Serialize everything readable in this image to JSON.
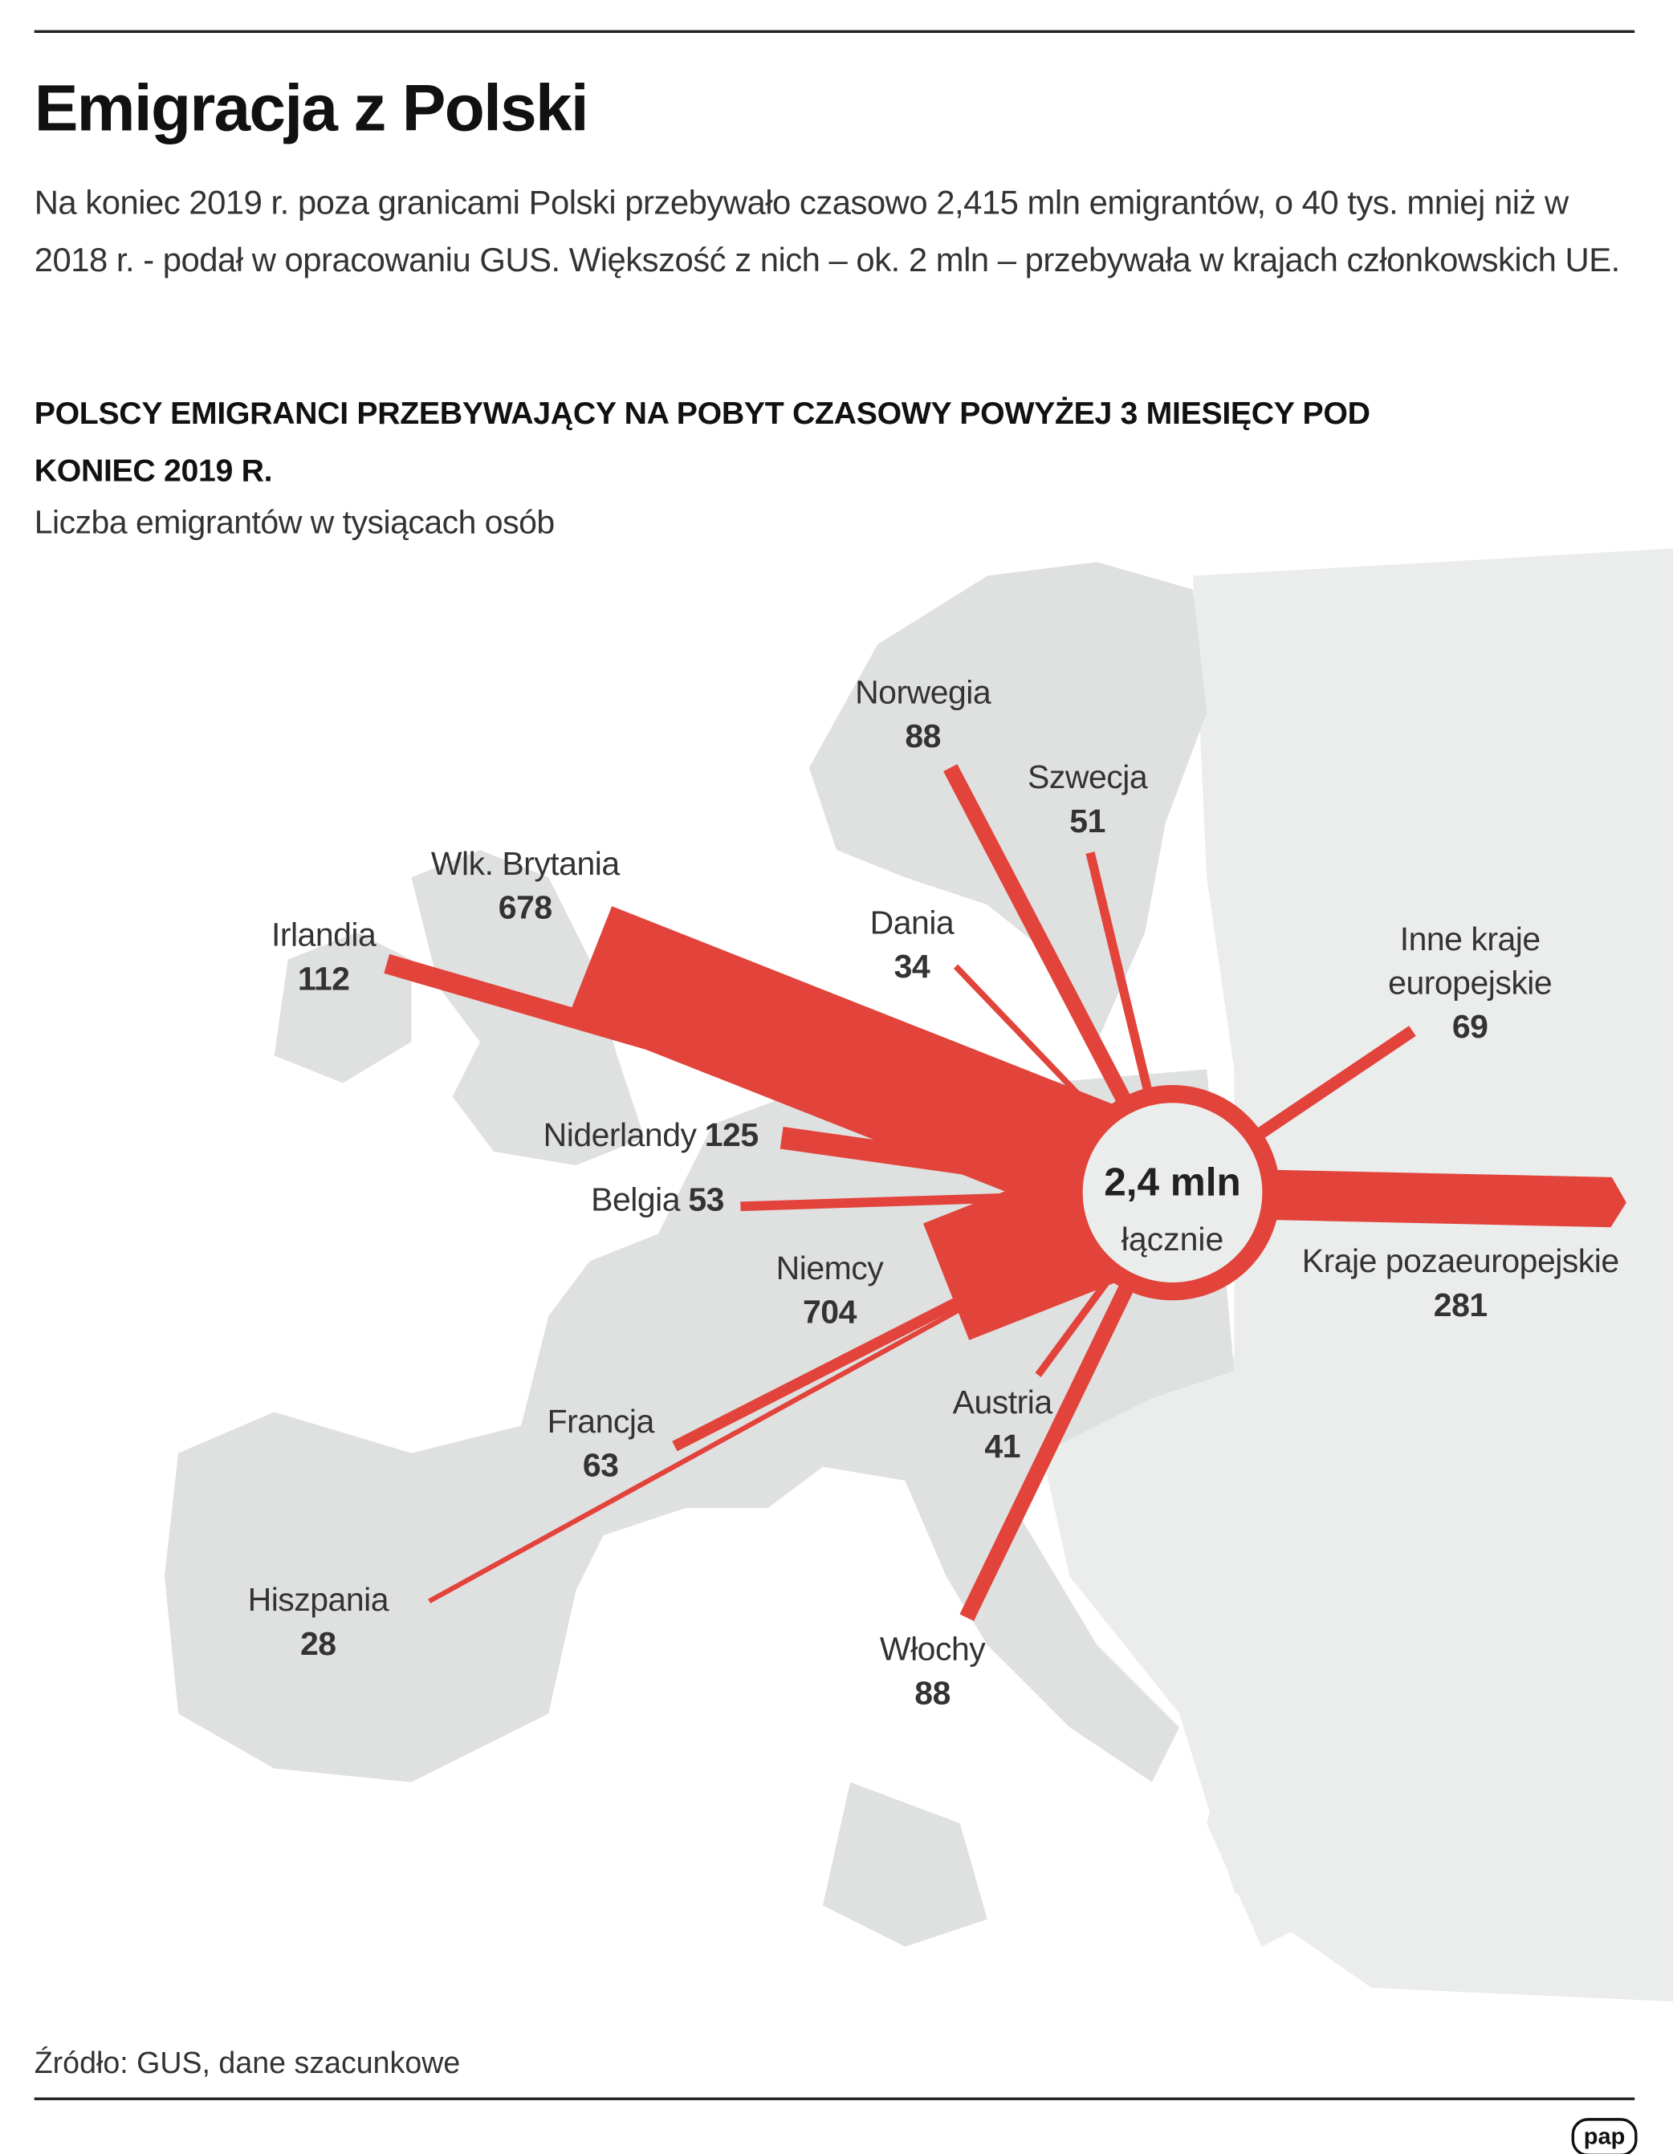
{
  "header": {
    "title": "Emigracja z Polski",
    "text": "Na koniec 2019 r. poza granicami Polski przebywało czasowo 2,415 mln emigrantów, o 40 tys. mniej niż w 2018 r. - podał w opracowaniu GUS. Większość z nich – ok. 2 mln – przebywała w krajach członkowskich UE."
  },
  "chart_data": {
    "type": "flow",
    "title": "POLSCY EMIGRANCI PRZEBYWAJĄCY NA POBYT CZASOWY POWYŻEJ 3 MIESIĘCY POD KONIEC 2019 R.",
    "subtitle": "Liczba emigrantów w tysiącach osób",
    "center_label": "2,4 mln",
    "center_sublabel": "łącznie",
    "color": "#e2433a",
    "categories": [
      "Norwegia",
      "Szwecja",
      "Dania",
      "Wlk. Brytania",
      "Irlandia",
      "Niderlandy",
      "Belgia",
      "Niemcy",
      "Inne kraje europejskie",
      "Kraje pozaeuropejskie",
      "Austria",
      "Francja",
      "Hiszpania",
      "Włochy"
    ],
    "values": [
      88,
      51,
      34,
      678,
      112,
      125,
      53,
      704,
      69,
      281,
      41,
      63,
      28,
      88
    ]
  },
  "source": "Źródło: GUS, dane szacunkowe",
  "logo": "pap"
}
